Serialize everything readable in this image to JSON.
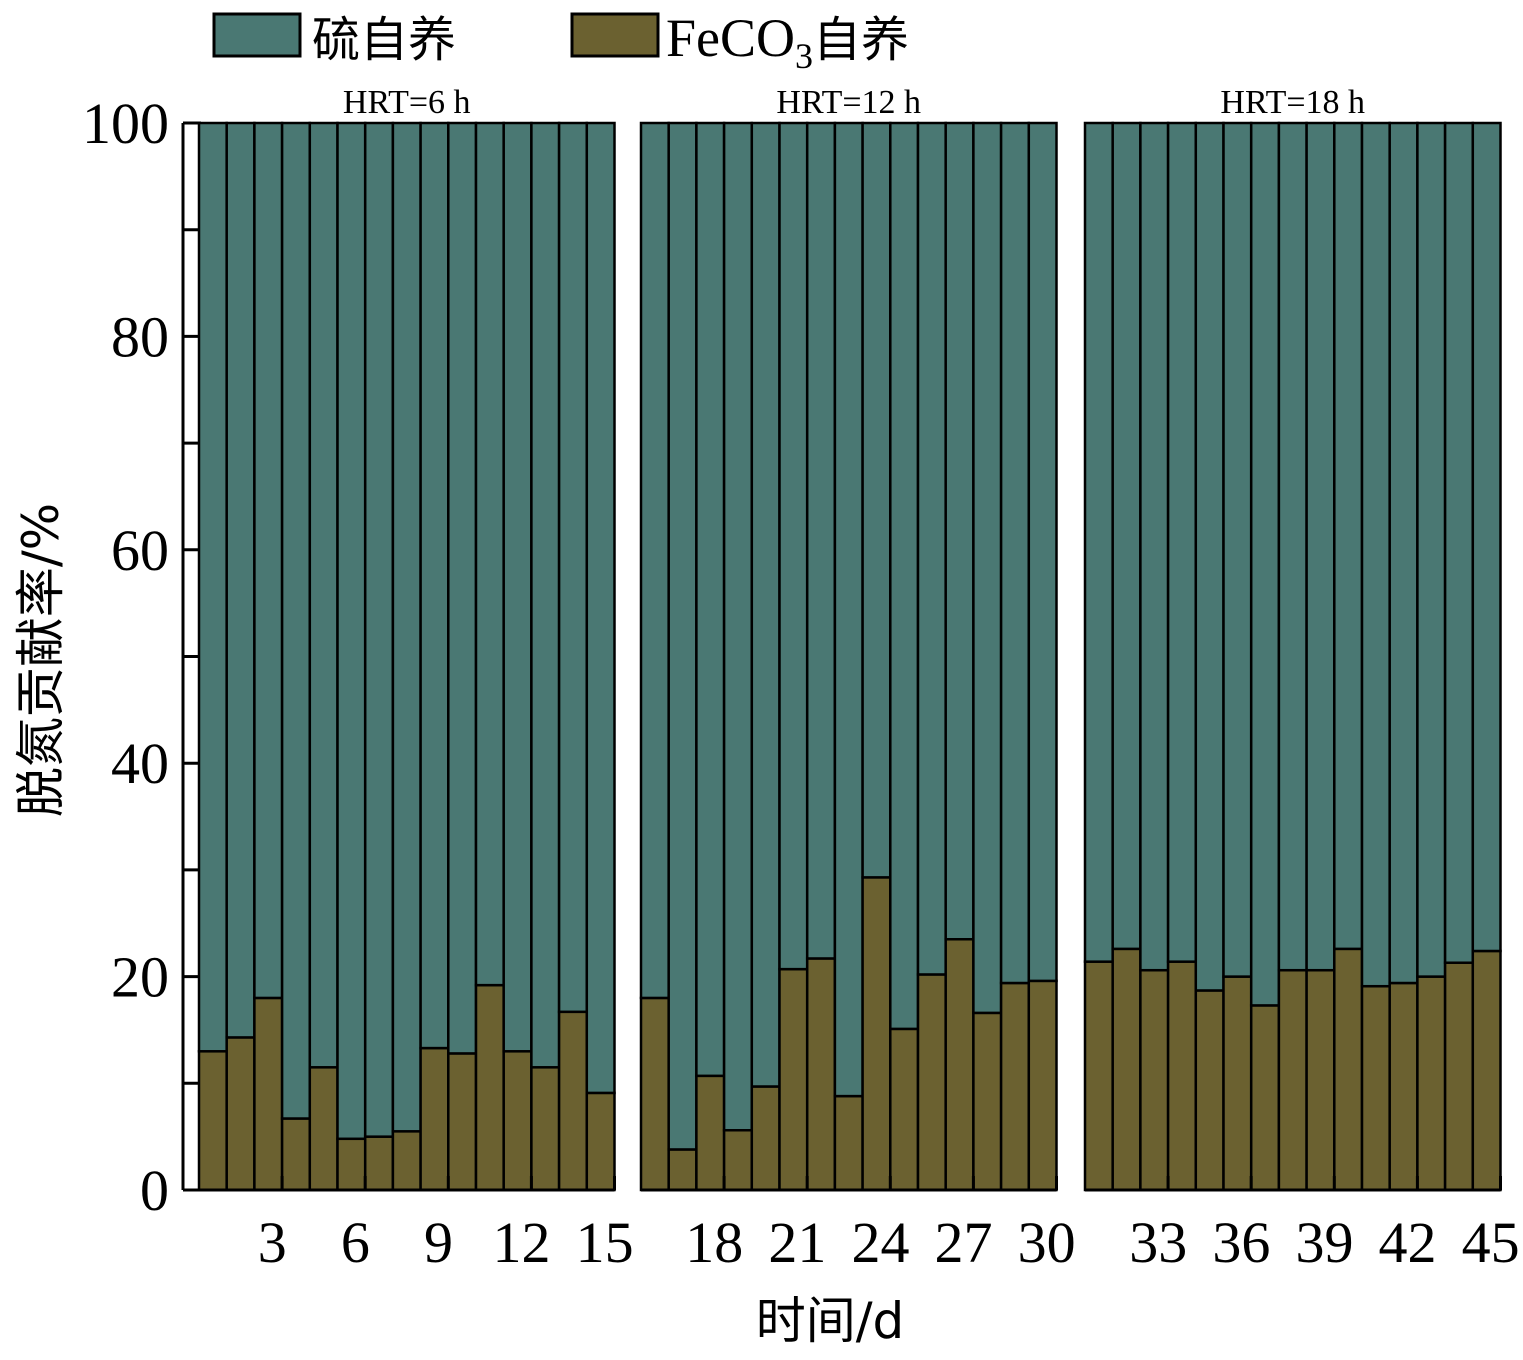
{
  "chart_data": {
    "type": "bar",
    "stacked": true,
    "xlabel": "时间/d",
    "ylabel": "脱氮贡献率/%",
    "ylim": [
      0,
      100
    ],
    "yticks": [
      0,
      20,
      40,
      60,
      80,
      100
    ],
    "legend": {
      "position": "top-left",
      "entries": [
        {
          "label": "硫自养",
          "color": "#4a7873"
        },
        {
          "label_main": "FeCO",
          "label_sub": "3",
          "label_tail": "自养",
          "color": "#6b6130"
        }
      ]
    },
    "panels": [
      {
        "label": "HRT=6 h",
        "days": [
          1,
          2,
          3,
          4,
          5,
          6,
          7,
          8,
          9,
          10,
          11,
          12,
          13,
          14,
          15
        ],
        "tick_labels": [
          "3",
          "6",
          "9",
          "12",
          "15"
        ],
        "tick_days": [
          3,
          6,
          9,
          12,
          15
        ]
      },
      {
        "label": "HRT=12 h",
        "days": [
          16,
          17,
          18,
          19,
          20,
          21,
          22,
          23,
          24,
          25,
          26,
          27,
          28,
          29,
          30
        ],
        "tick_labels": [
          "18",
          "21",
          "24",
          "27",
          "30"
        ],
        "tick_days": [
          18,
          21,
          24,
          27,
          30
        ]
      },
      {
        "label": "HRT=18 h",
        "days": [
          31,
          32,
          33,
          34,
          35,
          36,
          37,
          38,
          39,
          40,
          41,
          42,
          43,
          44,
          45
        ],
        "tick_labels": [
          "33",
          "36",
          "39",
          "42",
          "45"
        ],
        "tick_days": [
          33,
          36,
          39,
          42,
          45
        ]
      }
    ],
    "series": [
      {
        "name": "FeCO3自养",
        "color": "#6b6130",
        "values": [
          13.0,
          14.3,
          18.0,
          6.7,
          11.5,
          4.8,
          5.0,
          5.5,
          13.3,
          12.8,
          19.2,
          13.0,
          11.5,
          16.7,
          9.1,
          18.0,
          3.8,
          10.7,
          5.6,
          9.7,
          20.7,
          21.7,
          8.8,
          29.3,
          15.1,
          20.2,
          23.5,
          16.6,
          19.4,
          19.6,
          21.4,
          22.6,
          20.6,
          21.4,
          18.7,
          20.0,
          17.3,
          20.6,
          20.6,
          22.6,
          19.1,
          19.4,
          20.0,
          21.3,
          22.4
        ]
      },
      {
        "name": "硫自养",
        "color": "#4a7873",
        "values": [
          87.0,
          85.7,
          82.0,
          93.3,
          88.5,
          95.2,
          95.0,
          94.5,
          86.7,
          87.2,
          80.8,
          87.0,
          88.5,
          83.3,
          90.9,
          82.0,
          96.2,
          89.3,
          94.4,
          90.3,
          79.3,
          78.3,
          91.2,
          70.7,
          84.9,
          79.8,
          76.5,
          83.4,
          80.6,
          80.4,
          78.6,
          77.4,
          79.4,
          78.6,
          81.3,
          80.0,
          82.7,
          79.4,
          79.4,
          77.4,
          80.9,
          80.6,
          80.0,
          78.7,
          77.6
        ]
      }
    ]
  }
}
